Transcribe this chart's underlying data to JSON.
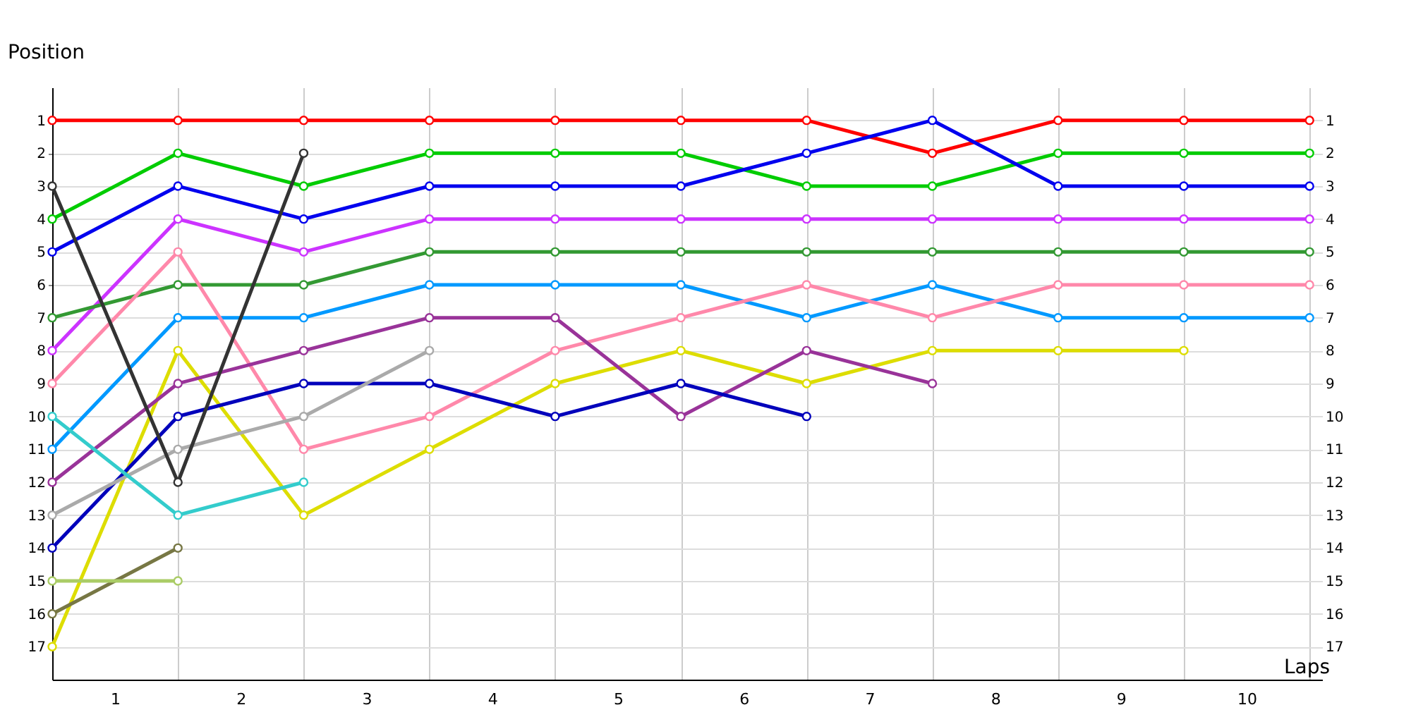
{
  "chart_data": {
    "type": "line",
    "xlabel": "Laps",
    "ylabel": "Position",
    "marker": "circle",
    "line_style": "solid",
    "grid": true,
    "legend": false,
    "x": [
      0,
      1,
      2,
      3,
      4,
      5,
      6,
      7,
      8,
      9,
      10
    ],
    "xlim": [
      0,
      10.1
    ],
    "xticks": [
      {
        "value": 0,
        "label": null
      },
      {
        "value": 0.5,
        "label": "1"
      },
      {
        "value": 1,
        "label": null
      },
      {
        "value": 1.5,
        "label": "2"
      },
      {
        "value": 2,
        "label": null
      },
      {
        "value": 2.5,
        "label": "3"
      },
      {
        "value": 3,
        "label": null
      },
      {
        "value": 3.5,
        "label": "4"
      },
      {
        "value": 4,
        "label": null
      },
      {
        "value": 4.5,
        "label": "5"
      },
      {
        "value": 5,
        "label": null
      },
      {
        "value": 5.5,
        "label": "6"
      },
      {
        "value": 6,
        "label": null
      },
      {
        "value": 6.5,
        "label": "7"
      },
      {
        "value": 7,
        "label": null
      },
      {
        "value": 7.5,
        "label": "8"
      },
      {
        "value": 8,
        "label": null
      },
      {
        "value": 8.5,
        "label": "9"
      },
      {
        "value": 9,
        "label": null
      },
      {
        "value": 9.5,
        "label": "10"
      },
      {
        "value": 10,
        "label": null
      }
    ],
    "ylim": [
      18,
      0
    ],
    "yticks": [
      1,
      2,
      3,
      4,
      5,
      6,
      7,
      8,
      9,
      10,
      11,
      12,
      13,
      14,
      15,
      16,
      17
    ],
    "y2lim": [
      18,
      0
    ],
    "y2ticks": [
      1,
      2,
      3,
      4,
      5,
      6,
      7,
      8,
      9,
      10,
      11,
      12,
      13,
      14,
      15,
      16,
      17
    ],
    "series": [
      {
        "color": "#ff0000",
        "values": [
          1,
          1,
          1,
          1,
          1,
          1,
          1,
          2,
          1,
          1,
          1
        ]
      },
      {
        "color": "#00cc00",
        "values": [
          4,
          2,
          3,
          2,
          2,
          2,
          3,
          3,
          2,
          2,
          2
        ]
      },
      {
        "color": "#0000ee",
        "values": [
          5,
          3,
          4,
          3,
          3,
          3,
          2,
          1,
          3,
          3,
          3
        ]
      },
      {
        "color": "#cc33ff",
        "values": [
          8,
          4,
          5,
          4,
          4,
          4,
          4,
          4,
          4,
          4,
          4
        ]
      },
      {
        "color": "#339933",
        "values": [
          7,
          6,
          6,
          5,
          5,
          5,
          5,
          5,
          5,
          5,
          5
        ]
      },
      {
        "color": "#0099ff",
        "values": [
          11,
          7,
          7,
          6,
          6,
          6,
          7,
          6,
          7,
          7,
          7
        ]
      },
      {
        "color": "#ff88aa",
        "values": [
          9,
          5,
          11,
          10,
          8,
          7,
          6,
          7,
          6,
          6,
          6
        ]
      },
      {
        "color": "#dddd00",
        "values": [
          17,
          8,
          13,
          11,
          9,
          8,
          9,
          8,
          8,
          8,
          null
        ]
      },
      {
        "color": "#993399",
        "values": [
          12,
          9,
          8,
          7,
          7,
          10,
          8,
          9,
          null,
          null,
          null
        ]
      },
      {
        "color": "#0000bb",
        "values": [
          14,
          10,
          9,
          9,
          10,
          9,
          10,
          null,
          null,
          null,
          null
        ]
      },
      {
        "color": "#aaaaaa",
        "values": [
          13,
          11,
          10,
          8,
          null,
          null,
          null,
          null,
          null,
          null,
          null
        ]
      },
      {
        "color": "#33cccc",
        "values": [
          10,
          13,
          12,
          null,
          null,
          null,
          null,
          null,
          null,
          null,
          null
        ]
      },
      {
        "color": "#333333",
        "values": [
          3,
          12,
          2,
          null,
          null,
          null,
          null,
          null,
          null,
          null,
          null
        ]
      },
      {
        "color": "#777744",
        "values": [
          16,
          14,
          null,
          null,
          null,
          null,
          null,
          null,
          null,
          null,
          null
        ]
      },
      {
        "color": "#aacc66",
        "values": [
          15,
          15,
          null,
          null,
          null,
          null,
          null,
          null,
          null,
          null,
          null
        ]
      }
    ]
  }
}
